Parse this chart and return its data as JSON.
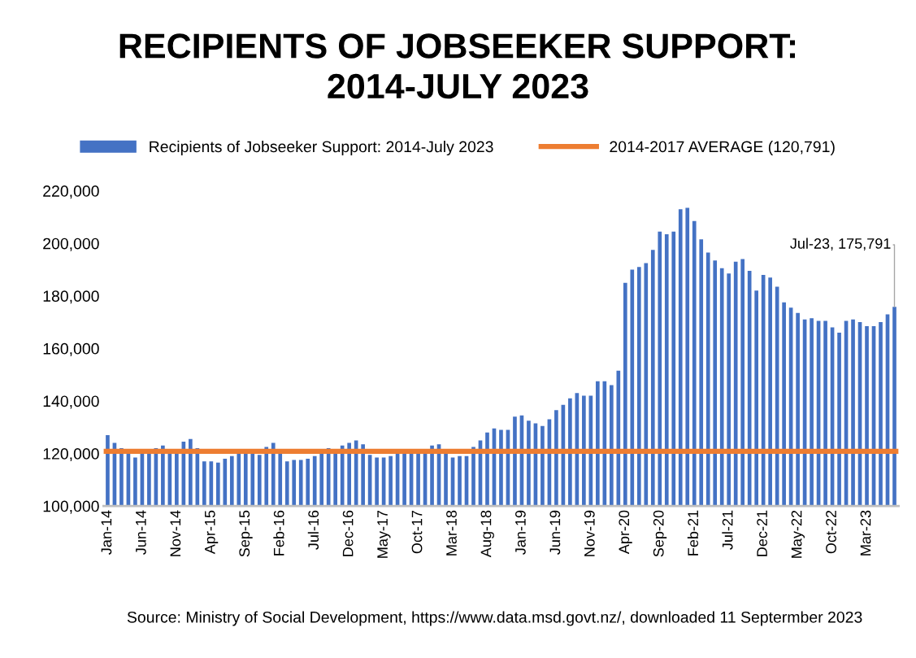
{
  "chart_data": {
    "type": "bar",
    "title": "RECIPIENTS OF JOBSEEKER SUPPORT:\n2014-JULY 2023",
    "categories": [
      "Jan-14",
      null,
      null,
      null,
      null,
      "Jun-14",
      null,
      null,
      null,
      null,
      "Nov-14",
      null,
      null,
      null,
      null,
      "Apr-15",
      null,
      null,
      null,
      null,
      "Sep-15",
      null,
      null,
      null,
      null,
      "Feb-16",
      null,
      null,
      null,
      null,
      "Jul-16",
      null,
      null,
      null,
      null,
      "Dec-16",
      null,
      null,
      null,
      null,
      "May-17",
      null,
      null,
      null,
      null,
      "Oct-17",
      null,
      null,
      null,
      null,
      "Mar-18",
      null,
      null,
      null,
      null,
      "Aug-18",
      null,
      null,
      null,
      null,
      "Jan-19",
      null,
      null,
      null,
      null,
      "Jun-19",
      null,
      null,
      null,
      null,
      "Nov-19",
      null,
      null,
      null,
      null,
      "Apr-20",
      null,
      null,
      null,
      null,
      "Sep-20",
      null,
      null,
      null,
      null,
      "Feb-21",
      null,
      null,
      null,
      null,
      "Jul-21",
      null,
      null,
      null,
      null,
      "Dec-21",
      null,
      null,
      null,
      null,
      "May-22",
      null,
      null,
      null,
      null,
      "Oct-22",
      null,
      null,
      null,
      null,
      "Mar-23",
      null,
      null,
      null,
      null
    ],
    "series": [
      {
        "name": "Recipients of Jobseeker Support: 2014-July 2023",
        "color": "#4472c4",
        "values": [
          127000,
          124000,
          122000,
          120000,
          118500,
          120500,
          120500,
          122000,
          123000,
          120500,
          120500,
          124500,
          125500,
          122000,
          117000,
          117000,
          116500,
          118000,
          119000,
          120500,
          120500,
          120500,
          119500,
          122500,
          124000,
          120500,
          117000,
          117500,
          117500,
          118000,
          119000,
          120500,
          122000,
          120500,
          123000,
          124000,
          125000,
          123500,
          119500,
          118500,
          118500,
          119000,
          120000,
          120500,
          120500,
          120500,
          120000,
          123000,
          123500,
          120500,
          118500,
          119000,
          119000,
          122500,
          125000,
          128000,
          129500,
          129000,
          129000,
          134000,
          134500,
          132500,
          131500,
          130500,
          133000,
          136500,
          138500,
          141000,
          143000,
          142000,
          142000,
          147500,
          147500,
          146000,
          151500,
          185000,
          190000,
          191000,
          192500,
          197500,
          204500,
          203500,
          204500,
          213000,
          213500,
          208500,
          201500,
          196500,
          193500,
          190500,
          188500,
          193000,
          194000,
          189500,
          182000,
          188000,
          187000,
          183500,
          177500,
          175500,
          173500,
          171000,
          171500,
          170500,
          170500,
          168000,
          166000,
          170500,
          171000,
          170000,
          168500,
          168500,
          170000,
          173000,
          175791
        ],
        "value_labels": [
          null,
          null,
          null,
          null,
          null,
          null,
          null,
          null,
          null,
          null,
          null,
          null,
          null,
          null,
          null,
          null,
          null,
          null,
          null,
          null,
          null,
          null,
          null,
          null,
          null,
          null,
          null,
          null,
          null,
          null,
          null,
          null,
          null,
          null,
          null,
          null,
          null,
          null,
          null,
          null,
          null,
          null,
          null,
          null,
          null,
          null,
          null,
          null,
          null,
          null,
          null,
          null,
          null,
          null,
          null,
          null,
          null,
          null,
          null,
          null,
          null,
          null,
          null,
          null,
          null,
          null,
          null,
          null,
          null,
          null,
          null,
          null,
          null,
          null,
          null,
          null,
          null,
          null,
          null,
          null,
          null,
          null,
          null,
          null,
          null,
          null,
          null,
          null,
          null,
          null,
          null,
          null,
          null,
          null,
          null,
          null,
          null,
          null,
          null,
          null,
          null,
          null,
          null,
          null,
          null,
          null,
          null,
          null,
          null,
          null,
          null,
          null,
          null,
          null,
          "Jul-23, 175,791"
        ]
      }
    ],
    "ref_lines": [
      {
        "axis": "y",
        "value": 120791,
        "label": "2014-2017 AVERAGE (120,791)",
        "color": "#ed7d31"
      }
    ],
    "ylim": [
      100000,
      220000
    ],
    "yticks": [
      {
        "value": 100000,
        "label": "100,000"
      },
      {
        "value": 120000,
        "label": "120,000"
      },
      {
        "value": 140000,
        "label": "140,000"
      },
      {
        "value": 160000,
        "label": "160,000"
      },
      {
        "value": 180000,
        "label": "180,000"
      },
      {
        "value": 200000,
        "label": "200,000"
      },
      {
        "value": 220000,
        "label": "220,000"
      }
    ],
    "grid": false,
    "legend": "top",
    "annotations": [
      "Source: Ministry of Social Development, https://www.data.msd.govt.nz/, downloaded 11 Septermber 2023"
    ]
  }
}
